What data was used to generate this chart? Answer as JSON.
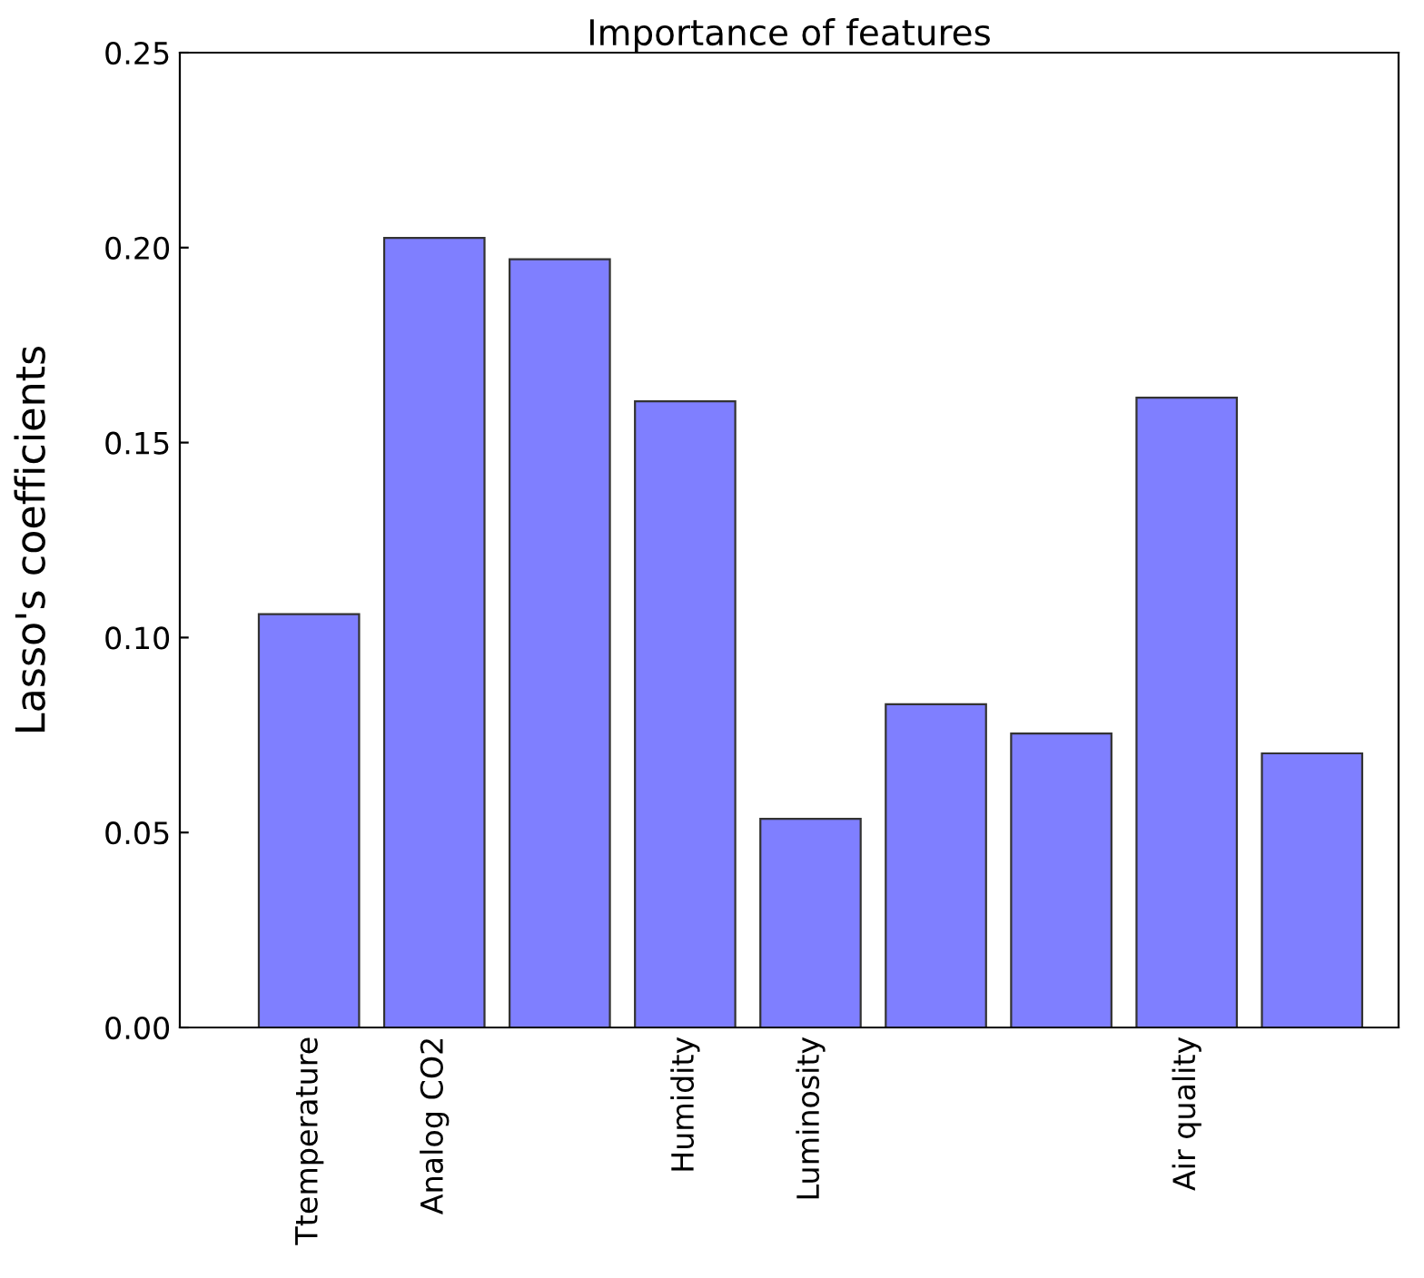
{
  "chart_data": {
    "type": "bar",
    "title": "Importance of features",
    "ylabel": "Lasso's coefficients",
    "categories": [
      "Ttemperature",
      "Analog CO2",
      null,
      "Humidity",
      "Luminosity",
      null,
      null,
      "Air quality",
      null
    ],
    "values": [
      0.106,
      0.2025,
      0.197,
      0.1606,
      0.0535,
      0.0829,
      0.0754,
      0.1615,
      0.0703
    ],
    "color": "#7f7fff",
    "ylim": [
      0,
      0.25
    ],
    "yticks": [
      {
        "value": 0,
        "label": "0.00"
      },
      {
        "value": 0.05,
        "label": "0.05"
      },
      {
        "value": 0.1,
        "label": "0.10"
      },
      {
        "value": 0.15,
        "label": "0.15"
      },
      {
        "value": 0.2,
        "label": "0.20"
      },
      {
        "value": 0.25,
        "label": "0.25"
      }
    ],
    "grid": false,
    "legend": false
  }
}
